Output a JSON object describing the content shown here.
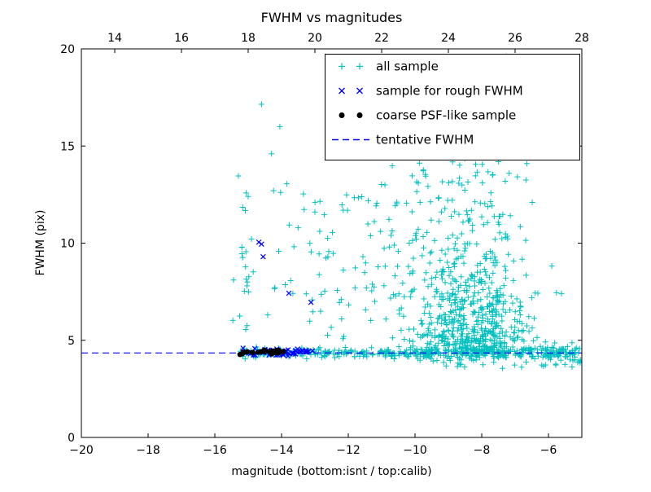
{
  "chart_data": {
    "type": "scatter",
    "title": "FWHM vs magnitudes",
    "xlabel": "magnitude (bottom:isnt / top:calib)",
    "ylabel": "FWHM (pix)",
    "xlim": [
      -20,
      -5
    ],
    "xlim_top": [
      13,
      28
    ],
    "ylim": [
      0,
      20
    ],
    "grid": false,
    "xticks_bottom": [
      -20,
      -18,
      -16,
      -14,
      -12,
      -10,
      -8,
      -6
    ],
    "xtick_labels_bottom": [
      "−20",
      "−18",
      "−16",
      "−14",
      "−12",
      "−10",
      "−8",
      "−6"
    ],
    "xticks_top": [
      14,
      16,
      18,
      20,
      22,
      24,
      26,
      28
    ],
    "xtick_labels_top": [
      "14",
      "16",
      "18",
      "20",
      "22",
      "24",
      "26",
      "28"
    ],
    "yticks": [
      0,
      5,
      10,
      15,
      20
    ],
    "ytick_labels": [
      "0",
      "5",
      "10",
      "15",
      "20"
    ],
    "tentative_fwhm": 4.35,
    "colors": {
      "all_sample": "#00bfbf",
      "rough_fwhm_sample": "#0000ff",
      "psf_like_sample": "#000000",
      "tentative_line": "#0000ff",
      "axes": "#000000",
      "background": "#ffffff"
    },
    "legend": {
      "position": "upper right",
      "entries": [
        {
          "label": "all sample",
          "marker": "plus",
          "color": "#00bfbf"
        },
        {
          "label": "sample for rough FWHM",
          "marker": "x",
          "color": "#0000ff"
        },
        {
          "label": "coarse PSF-like sample",
          "marker": "dot",
          "color": "#000000"
        },
        {
          "label": "tentative FWHM",
          "marker": "dashed-line",
          "color": "#0000ff"
        }
      ]
    },
    "series": [
      {
        "name": "all sample",
        "marker": "plus",
        "color": "#00bfbf",
        "seed": 42,
        "clusters": [
          {
            "n": 140,
            "x": {
              "d": "u",
              "a": -15.25,
              "b": -11.0
            },
            "y": {
              "d": "n",
              "mu": 4.35,
              "s": 0.13
            }
          },
          {
            "n": 280,
            "x": {
              "d": "u",
              "a": -11.0,
              "b": -5.1
            },
            "y": {
              "d": "n",
              "mu": 4.35,
              "s": 0.16
            }
          },
          {
            "n": 30,
            "x": {
              "d": "u",
              "a": -6.3,
              "b": -5.0
            },
            "y": {
              "d": "n",
              "mu": 4.2,
              "s": 0.3
            }
          },
          {
            "n": 520,
            "x": {
              "d": "n",
              "mu": -8.2,
              "s": 0.85
            },
            "y": {
              "d": "e",
              "base": 4.35,
              "scale": 2.3,
              "max": 19.6
            }
          },
          {
            "n": 140,
            "x": {
              "d": "n",
              "mu": -9.2,
              "s": 1.1
            },
            "y": {
              "d": "u",
              "a": 4.6,
              "b": 14.0
            }
          },
          {
            "n": 75,
            "x": {
              "d": "u",
              "a": -13.2,
              "b": -9.6
            },
            "y": {
              "d": "u",
              "a": 4.8,
              "b": 13.0
            }
          },
          {
            "n": 22,
            "x": {
              "d": "u",
              "a": -15.5,
              "b": -13.2
            },
            "y": {
              "d": "u",
              "a": 5.0,
              "b": 13.5
            }
          },
          {
            "n": 16,
            "x": {
              "d": "n",
              "mu": -15.05,
              "s": 0.1
            },
            "y": {
              "d": "u",
              "a": 5.0,
              "b": 12.8
            }
          },
          {
            "n": 35,
            "x": {
              "d": "u",
              "a": -10.2,
              "b": -6.2
            },
            "y": {
              "d": "u",
              "a": 13.5,
              "b": 19.7
            }
          },
          {
            "n": 22,
            "x": {
              "d": "u",
              "a": -9.5,
              "b": -5.2
            },
            "y": {
              "d": "u",
              "a": 3.5,
              "b": 4.0
            }
          }
        ],
        "points": [
          [
            -14.6,
            17.15
          ],
          [
            -14.05,
            16.0
          ],
          [
            -14.3,
            14.6
          ],
          [
            -13.0,
            11.6
          ],
          [
            -12.85,
            12.15
          ],
          [
            -15.0,
            12.4
          ],
          [
            -11.5,
            14.4
          ],
          [
            -10.9,
            13.0
          ],
          [
            -15.44,
            8.1
          ],
          [
            -12.2,
            6.1
          ]
        ]
      },
      {
        "name": "tentative FWHM",
        "type": "hline",
        "style": "dashed",
        "color": "#0000ff",
        "y": 4.35
      },
      {
        "name": "sample for rough FWHM",
        "marker": "x",
        "color": "#0000ff",
        "seed": 7,
        "clusters": [
          {
            "n": 50,
            "x": {
              "d": "u",
              "a": -15.18,
              "b": -13.0
            },
            "y": {
              "d": "n",
              "mu": 4.38,
              "s": 0.09
            }
          }
        ],
        "points": [
          [
            -14.68,
            10.05
          ],
          [
            -14.6,
            9.95
          ],
          [
            -14.55,
            9.3
          ],
          [
            -13.78,
            7.42
          ],
          [
            -13.12,
            6.95
          ]
        ]
      },
      {
        "name": "coarse PSF-like sample",
        "marker": "dot",
        "color": "#000000",
        "seed": 3,
        "clusters": [
          {
            "n": 28,
            "x": {
              "d": "u",
              "a": -15.25,
              "b": -13.92
            },
            "y": {
              "d": "n",
              "mu": 4.42,
              "s": 0.05
            }
          }
        ],
        "points": []
      }
    ]
  }
}
